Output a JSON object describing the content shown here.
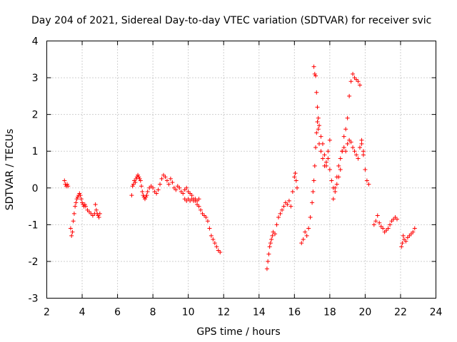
{
  "chart_data": {
    "type": "scatter",
    "title": "Day 204 of 2021, Sidereal Day-to-day VTEC variation (SDTVAR) for receiver svic",
    "xlabel": "GPS time / hours",
    "ylabel": "SDTVAR / TECUs",
    "xlim": [
      2,
      24
    ],
    "ylim": [
      -3,
      4
    ],
    "xticks": [
      "2",
      "4",
      "6",
      "8",
      "10",
      "12",
      "14",
      "16",
      "18",
      "20",
      "22",
      "24"
    ],
    "yticks": [
      "-3",
      "-2",
      "-1",
      "0",
      "1",
      "2",
      "3",
      "4"
    ],
    "grid": true,
    "marker": "+",
    "color": "#ff0000",
    "series": [
      {
        "name": "SDTVAR",
        "x": [
          3.0,
          3.05,
          3.1,
          3.15,
          3.2,
          3.35,
          3.4,
          3.45,
          3.5,
          3.55,
          3.6,
          3.65,
          3.7,
          3.75,
          3.8,
          3.85,
          3.9,
          3.95,
          4.0,
          4.05,
          4.1,
          4.15,
          4.2,
          4.3,
          4.4,
          4.5,
          4.6,
          4.7,
          4.75,
          4.8,
          4.85,
          4.9,
          4.95,
          5.0,
          6.8,
          6.85,
          6.9,
          6.95,
          7.0,
          7.05,
          7.1,
          7.15,
          7.2,
          7.25,
          7.3,
          7.35,
          7.4,
          7.45,
          7.5,
          7.55,
          7.6,
          7.65,
          7.7,
          7.8,
          7.9,
          8.0,
          8.1,
          8.2,
          8.3,
          8.4,
          8.5,
          8.6,
          8.7,
          8.8,
          8.9,
          9.0,
          9.1,
          9.2,
          9.3,
          9.4,
          9.5,
          9.6,
          9.7,
          9.8,
          9.9,
          10.0,
          10.1,
          10.2,
          10.3,
          10.4,
          10.5,
          10.6,
          10.7,
          10.8,
          10.9,
          11.0,
          11.1,
          11.2,
          11.3,
          11.4,
          11.5,
          11.6,
          11.7,
          11.8,
          9.8,
          9.9,
          10.0,
          10.1,
          10.2,
          10.3,
          10.4,
          10.5,
          10.6,
          14.45,
          14.5,
          14.55,
          14.6,
          14.65,
          14.7,
          14.75,
          14.8,
          14.9,
          15.0,
          15.1,
          15.2,
          15.3,
          15.4,
          15.5,
          15.6,
          15.7,
          15.8,
          15.9,
          16.0,
          16.05,
          16.1,
          16.15,
          16.4,
          16.5,
          16.6,
          16.7,
          16.8,
          16.9,
          17.0,
          17.05,
          17.1,
          17.15,
          17.2,
          17.25,
          17.3,
          17.35,
          17.4,
          17.5,
          17.6,
          17.7,
          17.8,
          17.9,
          18.0,
          17.1,
          17.15,
          17.2,
          17.25,
          17.3,
          17.35,
          17.4,
          17.5,
          17.6,
          17.7,
          17.8,
          17.9,
          18.0,
          18.1,
          18.2,
          18.3,
          18.4,
          18.5,
          18.6,
          18.7,
          18.8,
          18.9,
          19.0,
          19.1,
          19.2,
          19.3,
          19.4,
          19.5,
          19.6,
          19.7,
          19.8,
          19.9,
          20.0,
          20.1,
          20.2,
          18.2,
          18.3,
          18.4,
          18.5,
          18.6,
          18.7,
          18.8,
          18.9,
          19.0,
          19.1,
          19.2,
          19.3,
          19.4,
          19.5,
          19.6,
          19.7,
          19.8,
          19.9,
          20.5,
          20.6,
          20.7,
          20.8,
          20.9,
          21.0,
          21.1,
          21.2,
          21.3,
          21.4,
          21.5,
          21.6,
          21.7,
          21.8,
          22.05,
          22.1,
          22.15,
          22.2,
          22.3,
          22.4,
          22.5,
          22.6,
          22.7,
          22.8
        ],
        "y": [
          0.2,
          0.1,
          0.05,
          0.1,
          0.05,
          -1.1,
          -1.3,
          -1.2,
          -0.9,
          -0.7,
          -0.5,
          -0.4,
          -0.3,
          -0.25,
          -0.2,
          -0.15,
          -0.2,
          -0.3,
          -0.4,
          -0.45,
          -0.5,
          -0.45,
          -0.5,
          -0.6,
          -0.65,
          -0.7,
          -0.75,
          -0.7,
          -0.45,
          -0.6,
          -0.7,
          -0.75,
          -0.8,
          -0.7,
          -0.2,
          0.05,
          0.1,
          0.2,
          0.15,
          0.25,
          0.3,
          0.35,
          0.3,
          0.25,
          0.2,
          0.05,
          -0.1,
          -0.2,
          -0.25,
          -0.3,
          -0.25,
          -0.2,
          -0.1,
          0.0,
          0.05,
          0.0,
          -0.1,
          -0.15,
          -0.05,
          0.1,
          0.25,
          0.35,
          0.3,
          0.2,
          0.1,
          0.25,
          0.15,
          0.0,
          -0.05,
          0.05,
          0.0,
          -0.1,
          -0.15,
          -0.05,
          0.0,
          -0.1,
          -0.15,
          -0.2,
          -0.3,
          -0.35,
          -0.45,
          -0.5,
          -0.6,
          -0.7,
          -0.75,
          -0.8,
          -0.9,
          -1.1,
          -1.3,
          -1.4,
          -1.5,
          -1.6,
          -1.7,
          -1.75,
          -0.3,
          -0.35,
          -0.3,
          -0.35,
          -0.3,
          -0.35,
          -0.3,
          -0.35,
          -0.3,
          -2.2,
          -2.0,
          -1.8,
          -1.6,
          -1.5,
          -1.4,
          -1.3,
          -1.2,
          -1.25,
          -1.0,
          -0.8,
          -0.7,
          -0.6,
          -0.5,
          -0.4,
          -0.45,
          -0.35,
          -0.5,
          -0.1,
          0.3,
          0.4,
          0.2,
          0.0,
          -1.5,
          -1.4,
          -1.2,
          -1.3,
          -1.1,
          -0.8,
          -0.4,
          -0.1,
          0.2,
          0.6,
          1.1,
          1.5,
          1.8,
          1.9,
          1.7,
          1.4,
          1.2,
          0.9,
          0.6,
          1.0,
          1.3,
          3.3,
          3.1,
          3.05,
          2.6,
          2.2,
          1.6,
          1.2,
          1.0,
          0.8,
          0.6,
          0.7,
          0.8,
          0.5,
          0.2,
          0.0,
          -0.1,
          0.1,
          0.3,
          0.5,
          1.0,
          1.4,
          1.6,
          1.9,
          2.5,
          2.9,
          3.1,
          3.0,
          2.95,
          2.9,
          2.8,
          1.3,
          0.9,
          0.5,
          0.2,
          0.1,
          -0.3,
          0.0,
          0.3,
          0.6,
          0.8,
          1.0,
          1.1,
          1.0,
          1.2,
          1.3,
          1.25,
          1.1,
          1.0,
          0.9,
          0.8,
          1.1,
          1.2,
          1.0,
          -1.0,
          -0.9,
          -0.75,
          -0.95,
          -1.05,
          -1.1,
          -1.2,
          -1.15,
          -1.1,
          -1.0,
          -0.9,
          -0.85,
          -0.8,
          -0.85,
          -1.6,
          -1.5,
          -1.3,
          -1.4,
          -1.45,
          -1.35,
          -1.3,
          -1.25,
          -1.2,
          -1.1
        ]
      }
    ]
  }
}
